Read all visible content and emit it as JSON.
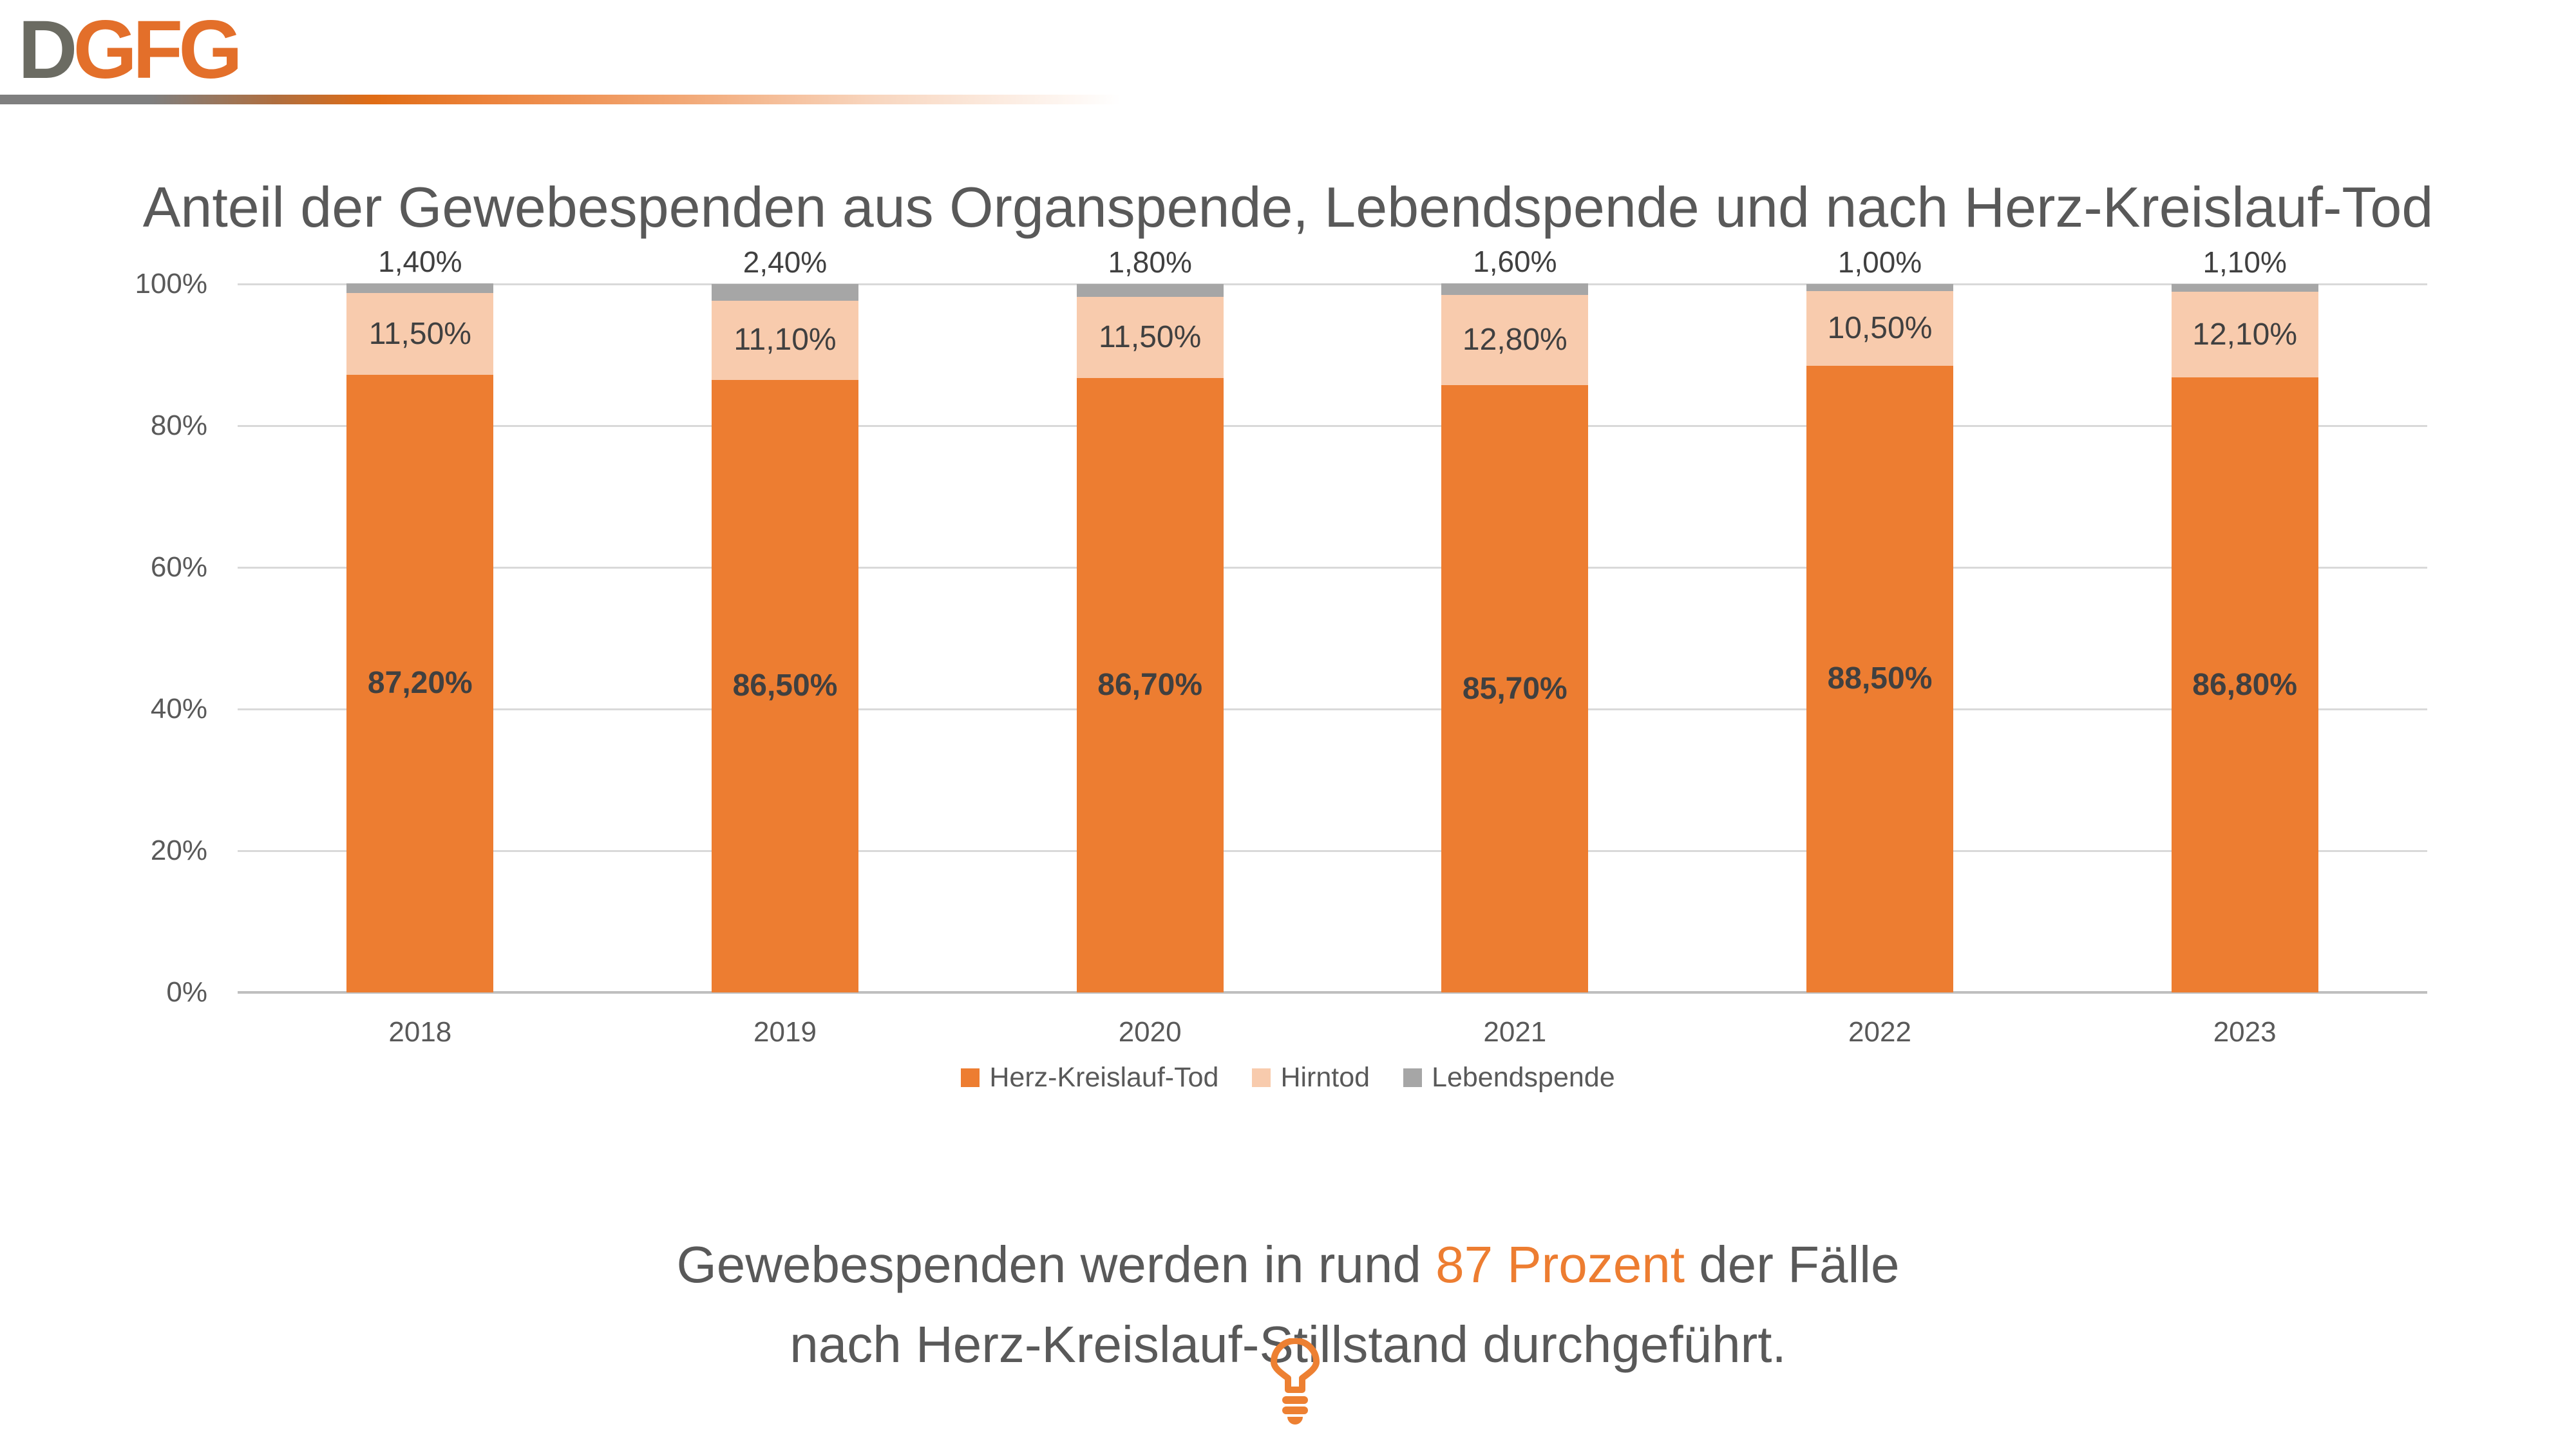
{
  "logo": {
    "gray_part": "D",
    "orange_part": "GFG"
  },
  "title": "Anteil der Gewebespenden aus Organspende, Lebendspende und nach Herz-Kreislauf-Tod",
  "chart_data": {
    "type": "bar",
    "stacked": true,
    "title": "Anteil der Gewebespenden aus Organspende, Lebendspende und nach Herz-Kreislauf-Tod",
    "categories": [
      "2018",
      "2019",
      "2020",
      "2021",
      "2022",
      "2023"
    ],
    "series": [
      {
        "name": "Herz-Kreislauf-Tod",
        "color": "#ED7D31",
        "values": [
          87.2,
          86.5,
          86.7,
          85.7,
          88.5,
          86.8
        ],
        "labels": [
          "87,20%",
          "86,50%",
          "86,70%",
          "85,70%",
          "88,50%",
          "86,80%"
        ],
        "labels_bold": true,
        "label_placement": "center"
      },
      {
        "name": "Hirntod",
        "color": "#F8CBAD",
        "values": [
          11.5,
          11.1,
          11.5,
          12.8,
          10.5,
          12.1
        ],
        "labels": [
          "11,50%",
          "11,10%",
          "11,50%",
          "12,80%",
          "10,50%",
          "12,10%"
        ],
        "labels_bold": false,
        "label_placement": "center"
      },
      {
        "name": "Lebendspende",
        "color": "#A6A6A6",
        "values": [
          1.4,
          2.4,
          1.8,
          1.6,
          1.0,
          1.1
        ],
        "labels": [
          "1,40%",
          "2,40%",
          "1,80%",
          "1,60%",
          "1,00%",
          "1,10%"
        ],
        "labels_bold": false,
        "label_placement": "outside-end"
      }
    ],
    "y_axis": {
      "min": 0,
      "max": 100,
      "ticks": [
        {
          "value": 0,
          "label": "0%"
        },
        {
          "value": 20,
          "label": "20%"
        },
        {
          "value": 40,
          "label": "40%"
        },
        {
          "value": 60,
          "label": "60%"
        },
        {
          "value": 80,
          "label": "80%"
        },
        {
          "value": 100,
          "label": "100%"
        }
      ]
    },
    "grid": true,
    "legend_position": "bottom",
    "data_label_color": "#404040"
  },
  "caption": {
    "line1": [
      {
        "text": "Gewebespenden werden in rund ",
        "highlight": false
      },
      {
        "text": "87 Prozent",
        "highlight": true
      },
      {
        "text": " der Fälle",
        "highlight": false
      }
    ],
    "line2": "nach Herz-Kreislauf-Stillstand durchgeführt."
  },
  "icons": {
    "bottom_icon": "lightbulb-icon"
  },
  "colors": {
    "accent_orange": "#ED7D31",
    "peach": "#F8CBAD",
    "gray_series": "#A6A6A6",
    "text_gray": "#595959",
    "label_dark": "#404040",
    "logo_gray": "#6B6B62",
    "logo_orange": "#E36F2A",
    "gridline": "#D9D9D9"
  }
}
